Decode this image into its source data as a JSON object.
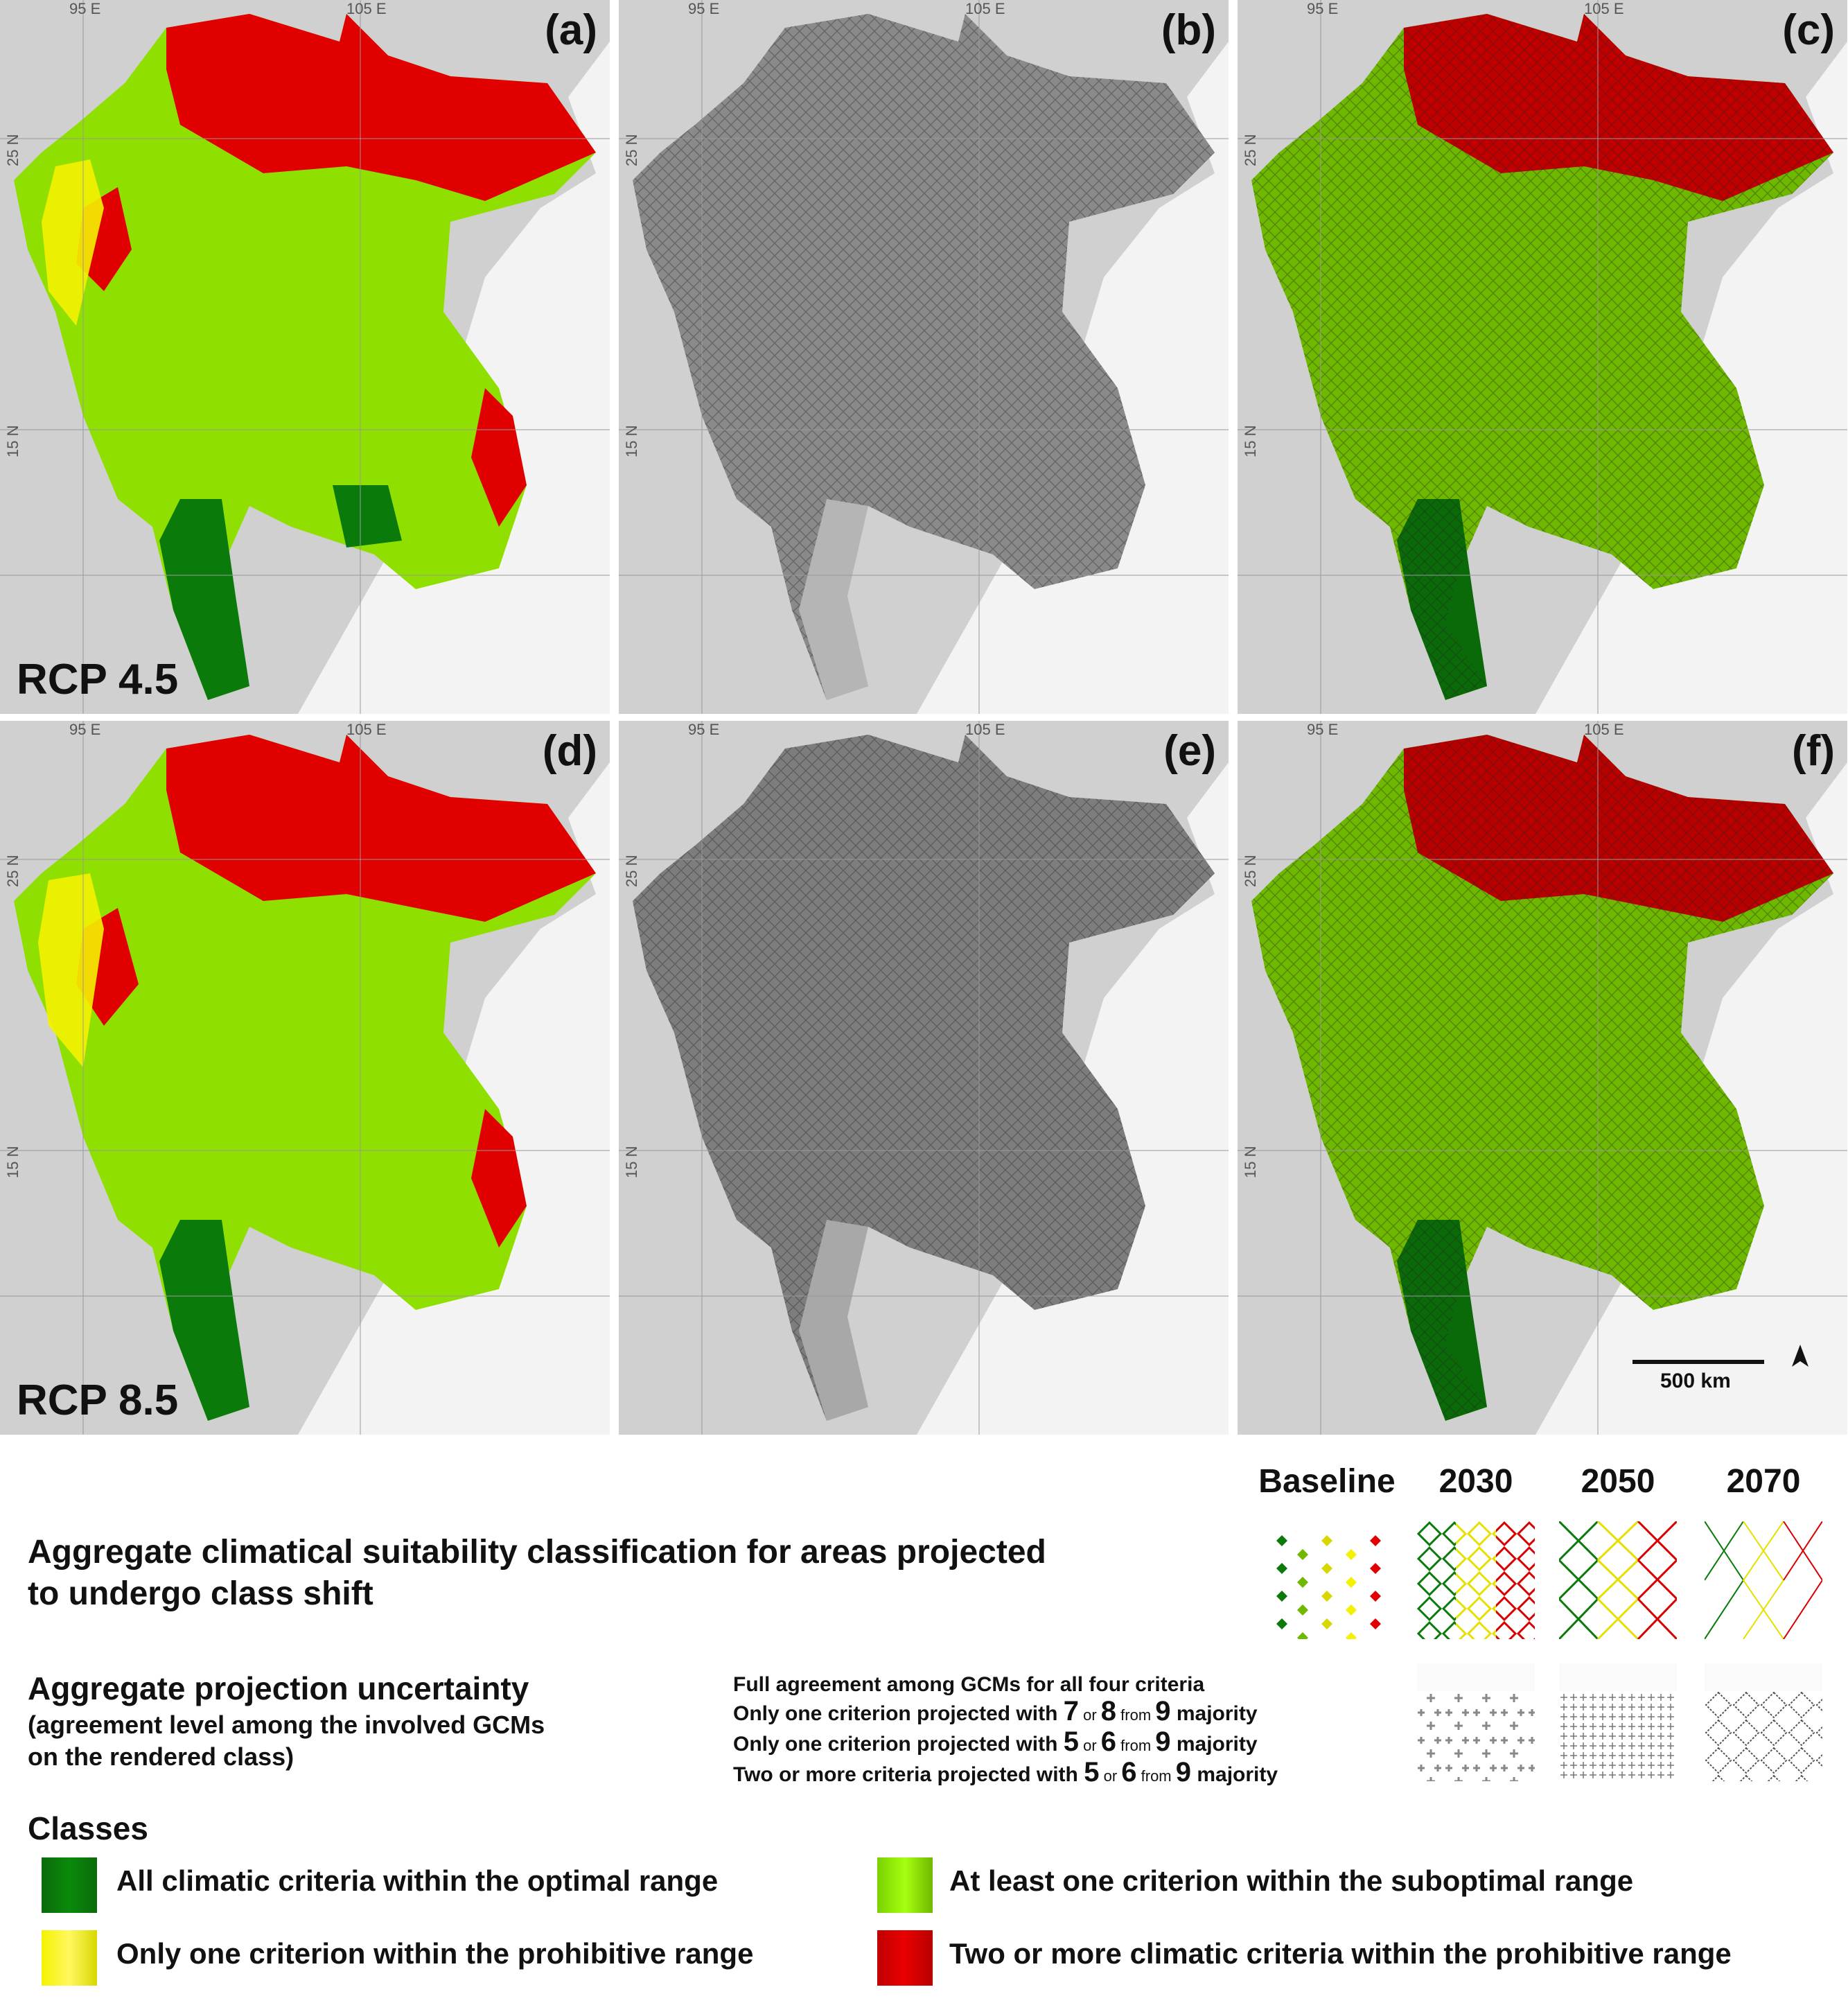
{
  "panels": [
    {
      "id": "a",
      "label": "(a)",
      "rcp": "RCP 4.5"
    },
    {
      "id": "b",
      "label": "(b)",
      "rcp": ""
    },
    {
      "id": "c",
      "label": "(c)",
      "rcp": ""
    },
    {
      "id": "d",
      "label": "(d)",
      "rcp": "RCP 8.5"
    },
    {
      "id": "e",
      "label": "(e)",
      "rcp": ""
    },
    {
      "id": "f",
      "label": "(f)",
      "rcp": ""
    }
  ],
  "coords": {
    "lon1": "95 E",
    "lon2": "105 E",
    "lat1": "25 N",
    "lat2": "15 N"
  },
  "scale_bar": {
    "label": "500 km"
  },
  "legend": {
    "columns": [
      "Baseline",
      "2030",
      "2050",
      "2070"
    ],
    "title1_line1": "Aggregate climatical suitability classification for areas projected",
    "title1_line2": "to undergo class shift",
    "title2": "Aggregate projection uncertainty",
    "title2_sub_line1": "(agreement level among the involved GCMs",
    "title2_sub_line2": "on the rendered class)",
    "agreement": {
      "row1": "Full agreement among GCMs for all four criteria",
      "row2_pre": "Only one criterion projected with ",
      "row2_n1": "7",
      "row2_or": " or ",
      "row2_n2": "8",
      "row2_from": " from ",
      "row2_n3": "9",
      "row2_post": " majority",
      "row3_pre": "Only one criterion projected with ",
      "row3_n1": "5",
      "row3_or": " or ",
      "row3_n2": "6",
      "row3_from": " from ",
      "row3_n3": "9",
      "row3_post": " majority",
      "row4_pre": "Two or more criteria projected with ",
      "row4_n1": "5",
      "row4_or": " or ",
      "row4_n2": "6",
      "row4_from": " from ",
      "row4_n3": "9",
      "row4_post": " majority"
    },
    "classes_title": "Classes",
    "classes": [
      {
        "label": "All climatic criteria within the optimal range",
        "color": "#0a7a0a"
      },
      {
        "label": "At least one criterion within the suboptimal range",
        "color": "#8fe000"
      },
      {
        "label": "Only one criterion within the prohibitive range",
        "color": "#f5f200"
      },
      {
        "label": "Two or more climatic criteria within the prohibitive range",
        "color": "#e00000"
      }
    ]
  }
}
